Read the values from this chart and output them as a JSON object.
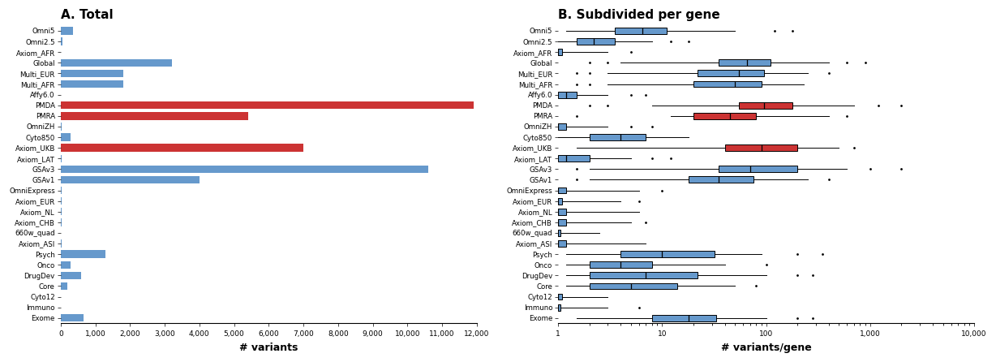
{
  "labels": [
    "Omni5",
    "Omni2.5",
    "Axiom_AFR",
    "Global",
    "Multi_EUR",
    "Multi_AFR",
    "Affy6.0",
    "PMDA",
    "PMRA",
    "OmniZH",
    "Cyto850",
    "Axiom_UKB",
    "Axiom_LAT",
    "GSAv3",
    "GSAv1",
    "OmniExpress",
    "Axiom_EUR",
    "Axiom_NL",
    "Axiom_CHB",
    "660w_quad",
    "Axiom_ASI",
    "Psych",
    "Onco",
    "DrugDev",
    "Core",
    "Cyto12",
    "Immuno",
    "Exome"
  ],
  "bar_values": [
    350,
    60,
    15,
    3200,
    1800,
    1800,
    10,
    11900,
    5400,
    30,
    280,
    7000,
    30,
    10600,
    4000,
    20,
    20,
    20,
    20,
    10,
    20,
    1300,
    280,
    580,
    200,
    8,
    8,
    650
  ],
  "bar_colors": [
    "#6699cc",
    "#6699cc",
    "#6699cc",
    "#6699cc",
    "#6699cc",
    "#6699cc",
    "#6699cc",
    "#cc3333",
    "#cc3333",
    "#6699cc",
    "#6699cc",
    "#cc3333",
    "#6699cc",
    "#6699cc",
    "#6699cc",
    "#6699cc",
    "#6699cc",
    "#6699cc",
    "#6699cc",
    "#6699cc",
    "#6699cc",
    "#6699cc",
    "#6699cc",
    "#6699cc",
    "#6699cc",
    "#6699cc",
    "#6699cc",
    "#6699cc"
  ],
  "title_A": "A. Total",
  "title_B": "B. Subdivided per gene",
  "xlabel_A": "# variants",
  "xlabel_B": "# variants/gene",
  "box_data": {
    "Omni5": {
      "q1": 3.5,
      "median": 6.5,
      "q3": 11,
      "whisker_lo": 1.2,
      "whisker_hi": 50,
      "outliers_lo": [],
      "outliers_hi": [
        120,
        180
      ]
    },
    "Omni2.5": {
      "q1": 1.5,
      "median": 2.2,
      "q3": 3.5,
      "whisker_lo": 1.0,
      "whisker_hi": 8,
      "outliers_lo": [],
      "outliers_hi": [
        12,
        18
      ]
    },
    "Axiom_AFR": {
      "q1": 1.0,
      "median": 1.0,
      "q3": 1.1,
      "whisker_lo": 1.0,
      "whisker_hi": 3,
      "outliers_lo": [],
      "outliers_hi": [
        5
      ]
    },
    "Global": {
      "q1": 35,
      "median": 65,
      "q3": 110,
      "whisker_lo": 4,
      "whisker_hi": 400,
      "outliers_lo": [
        2,
        3
      ],
      "outliers_hi": [
        600,
        900
      ]
    },
    "Multi_EUR": {
      "q1": 22,
      "median": 55,
      "q3": 95,
      "whisker_lo": 3,
      "whisker_hi": 250,
      "outliers_lo": [
        1.5,
        2
      ],
      "outliers_hi": [
        400
      ]
    },
    "Multi_AFR": {
      "q1": 20,
      "median": 50,
      "q3": 90,
      "whisker_lo": 3,
      "whisker_hi": 230,
      "outliers_lo": [
        1.5,
        2
      ],
      "outliers_hi": []
    },
    "Affy6.0": {
      "q1": 1.0,
      "median": 1.2,
      "q3": 1.5,
      "whisker_lo": 1.0,
      "whisker_hi": 3,
      "outliers_lo": [],
      "outliers_hi": [
        5,
        7
      ]
    },
    "PMDA": {
      "q1": 55,
      "median": 95,
      "q3": 180,
      "whisker_lo": 8,
      "whisker_hi": 700,
      "outliers_lo": [
        2,
        3
      ],
      "outliers_hi": [
        1200,
        2000
      ]
    },
    "PMRA": {
      "q1": 20,
      "median": 45,
      "q3": 80,
      "whisker_lo": 12,
      "whisker_hi": 400,
      "outliers_lo": [
        1.5
      ],
      "outliers_hi": [
        600
      ]
    },
    "OmniZH": {
      "q1": 1.0,
      "median": 1.0,
      "q3": 1.2,
      "whisker_lo": 1.0,
      "whisker_hi": 3,
      "outliers_lo": [],
      "outliers_hi": [
        5,
        8
      ]
    },
    "Cyto850": {
      "q1": 2,
      "median": 4,
      "q3": 7,
      "whisker_lo": 1.0,
      "whisker_hi": 18,
      "outliers_lo": [],
      "outliers_hi": []
    },
    "Axiom_UKB": {
      "q1": 40,
      "median": 90,
      "q3": 200,
      "whisker_lo": 1.5,
      "whisker_hi": 500,
      "outliers_lo": [],
      "outliers_hi": [
        700
      ]
    },
    "Axiom_LAT": {
      "q1": 1.0,
      "median": 1.2,
      "q3": 2.0,
      "whisker_lo": 1.0,
      "whisker_hi": 5,
      "outliers_lo": [],
      "outliers_hi": [
        8,
        12
      ]
    },
    "GSAv3": {
      "q1": 35,
      "median": 70,
      "q3": 200,
      "whisker_lo": 2,
      "whisker_hi": 600,
      "outliers_lo": [
        1.5
      ],
      "outliers_hi": [
        1000,
        2000
      ]
    },
    "GSAv1": {
      "q1": 18,
      "median": 35,
      "q3": 75,
      "whisker_lo": 2,
      "whisker_hi": 250,
      "outliers_lo": [
        1.5
      ],
      "outliers_hi": [
        400
      ]
    },
    "OmniExpress": {
      "q1": 1.0,
      "median": 1.0,
      "q3": 1.2,
      "whisker_lo": 1.0,
      "whisker_hi": 6,
      "outliers_lo": [],
      "outliers_hi": [
        10
      ]
    },
    "Axiom_EUR": {
      "q1": 1.0,
      "median": 1.0,
      "q3": 1.1,
      "whisker_lo": 1.0,
      "whisker_hi": 4,
      "outliers_lo": [],
      "outliers_hi": [
        6
      ]
    },
    "Axiom_NL": {
      "q1": 1.0,
      "median": 1.0,
      "q3": 1.2,
      "whisker_lo": 1.0,
      "whisker_hi": 6,
      "outliers_lo": [],
      "outliers_hi": []
    },
    "Axiom_CHB": {
      "q1": 1.0,
      "median": 1.0,
      "q3": 1.2,
      "whisker_lo": 1.0,
      "whisker_hi": 5,
      "outliers_lo": [],
      "outliers_hi": [
        7
      ]
    },
    "660w_quad": {
      "q1": 1.0,
      "median": 1.0,
      "q3": 1.05,
      "whisker_lo": 1.0,
      "whisker_hi": 2.5,
      "outliers_lo": [],
      "outliers_hi": []
    },
    "Axiom_ASI": {
      "q1": 1.0,
      "median": 1.0,
      "q3": 1.2,
      "whisker_lo": 1.0,
      "whisker_hi": 7,
      "outliers_lo": [],
      "outliers_hi": []
    },
    "Psych": {
      "q1": 4,
      "median": 10,
      "q3": 32,
      "whisker_lo": 1.2,
      "whisker_hi": 90,
      "outliers_lo": [],
      "outliers_hi": [
        200,
        350
      ]
    },
    "Onco": {
      "q1": 2,
      "median": 4,
      "q3": 8,
      "whisker_lo": 1.2,
      "whisker_hi": 40,
      "outliers_lo": [],
      "outliers_hi": [
        100
      ]
    },
    "DrugDev": {
      "q1": 2,
      "median": 7,
      "q3": 22,
      "whisker_lo": 1.2,
      "whisker_hi": 100,
      "outliers_lo": [],
      "outliers_hi": [
        200,
        280
      ]
    },
    "Core": {
      "q1": 2,
      "median": 5,
      "q3": 14,
      "whisker_lo": 1.2,
      "whisker_hi": 50,
      "outliers_lo": [],
      "outliers_hi": [
        80
      ]
    },
    "Cyto12": {
      "q1": 1.0,
      "median": 1.0,
      "q3": 1.1,
      "whisker_lo": 1.0,
      "whisker_hi": 3,
      "outliers_lo": [],
      "outliers_hi": []
    },
    "Immuno": {
      "q1": 1.0,
      "median": 1.0,
      "q3": 1.05,
      "whisker_lo": 1.0,
      "whisker_hi": 3,
      "outliers_lo": [],
      "outliers_hi": [
        6
      ]
    },
    "Exome": {
      "q1": 8,
      "median": 18,
      "q3": 33,
      "whisker_lo": 1.5,
      "whisker_hi": 100,
      "outliers_lo": [],
      "outliers_hi": [
        200,
        280
      ]
    }
  },
  "box_colors": {
    "PMDA": "#cc3333",
    "PMRA": "#cc3333",
    "Axiom_UKB": "#cc3333"
  },
  "default_box_color": "#6699cc"
}
